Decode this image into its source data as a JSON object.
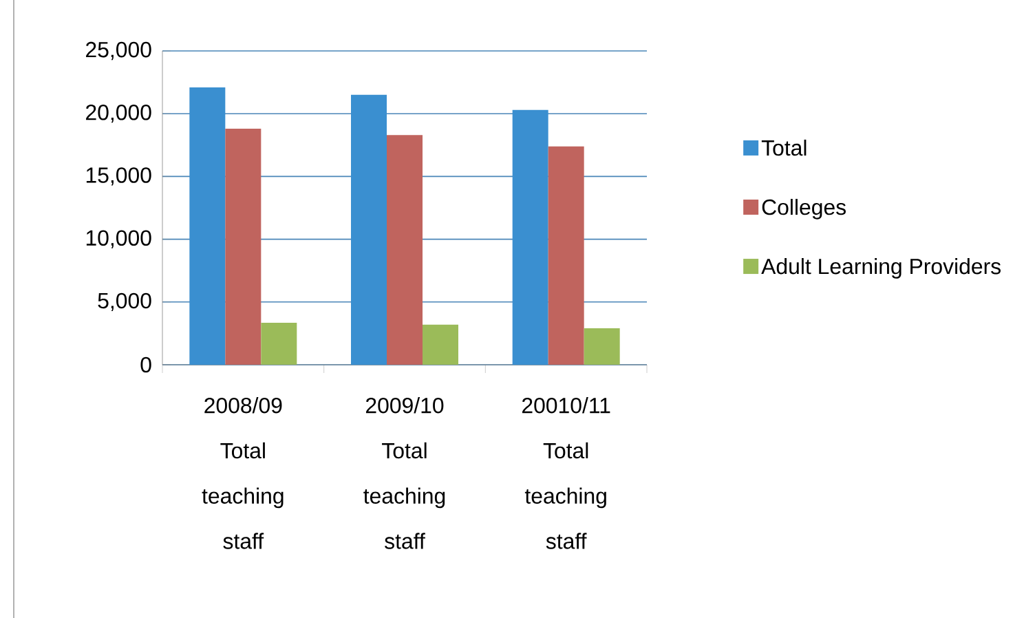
{
  "chart_data": {
    "type": "bar",
    "categories": [
      "2008/09 Total teaching staff",
      "2009/10 Total teaching staff",
      "20010/11 Total teaching staff"
    ],
    "series": [
      {
        "name": "Total",
        "color": "#3a8fd0",
        "values": [
          22100,
          21500,
          20300
        ]
      },
      {
        "name": "Colleges",
        "color": "#c0645e",
        "values": [
          18800,
          18300,
          17400
        ]
      },
      {
        "name": "Adult Learning Providers",
        "color": "#9bbb59",
        "values": [
          3350,
          3200,
          2900
        ]
      }
    ],
    "ylim": [
      0,
      25000
    ],
    "yticks": [
      0,
      {
        "value": 5000,
        "label": "5,000"
      },
      {
        "value": 10000,
        "label": "10,000"
      },
      {
        "value": 15000,
        "label": "15,000"
      },
      {
        "value": 20000,
        "label": "20,000"
      },
      {
        "value": 25000,
        "label": "25,000"
      }
    ],
    "grid": "y",
    "legend": "right"
  }
}
